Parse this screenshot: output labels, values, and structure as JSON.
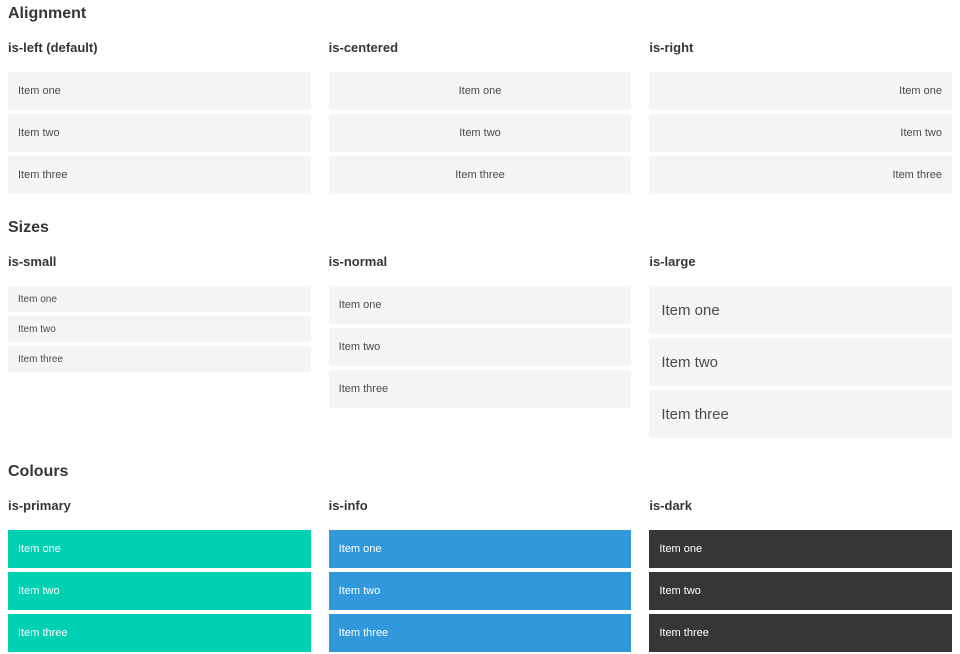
{
  "page": {
    "sections": [
      {
        "title": "Alignment",
        "groups": [
          {
            "label": "is-left (default)",
            "items": [
              "Item one",
              "Item two",
              "Item three"
            ]
          },
          {
            "label": "is-centered",
            "items": [
              "Item one",
              "Item two",
              "Item three"
            ]
          },
          {
            "label": "is-right",
            "items": [
              "Item one",
              "Item two",
              "Item three"
            ]
          }
        ]
      },
      {
        "title": "Sizes",
        "groups": [
          {
            "label": "is-small",
            "items": [
              "Item one",
              "Item two",
              "Item three"
            ]
          },
          {
            "label": "is-normal",
            "items": [
              "Item one",
              "Item two",
              "Item three"
            ]
          },
          {
            "label": "is-large",
            "items": [
              "Item one",
              "Item two",
              "Item three"
            ]
          }
        ]
      },
      {
        "title": "Colours",
        "groups": [
          {
            "label": "is-primary",
            "items": [
              "Item one",
              "Item two",
              "Item three"
            ]
          },
          {
            "label": "is-info",
            "items": [
              "Item one",
              "Item two",
              "Item three"
            ]
          },
          {
            "label": "is-dark",
            "items": [
              "Item one",
              "Item two",
              "Item three"
            ]
          }
        ]
      }
    ]
  },
  "colors": {
    "primary": "#00d1b2",
    "info": "#3298dc",
    "dark": "#363636",
    "item_background": "#f5f5f5",
    "heading_text": "#363636",
    "item_text": "#4a4a4a",
    "colored_item_text": "#ffffff"
  }
}
